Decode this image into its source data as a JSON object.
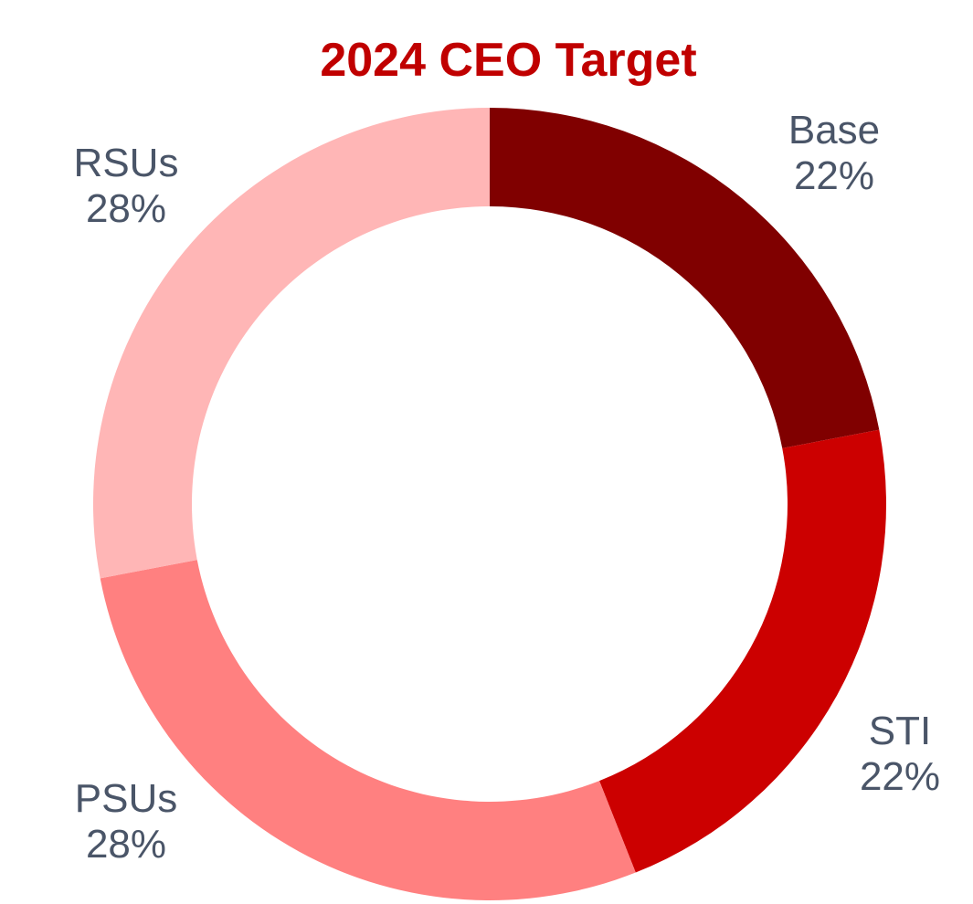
{
  "chart_data": {
    "type": "pie",
    "variant": "donut",
    "title": "2024 CEO Target",
    "slices": [
      {
        "label": "Base",
        "value": 22,
        "display": "22%",
        "color": "#800000"
      },
      {
        "label": "STI",
        "value": 22,
        "display": "22%",
        "color": "#cc0000"
      },
      {
        "label": "PSUs",
        "value": 28,
        "display": "28%",
        "color": "#ff8080"
      },
      {
        "label": "RSUs",
        "value": 28,
        "display": "28%",
        "color": "#ffb6b6"
      }
    ],
    "legend": "none",
    "label_color": "#4a5568",
    "title_color": "#c00000"
  }
}
